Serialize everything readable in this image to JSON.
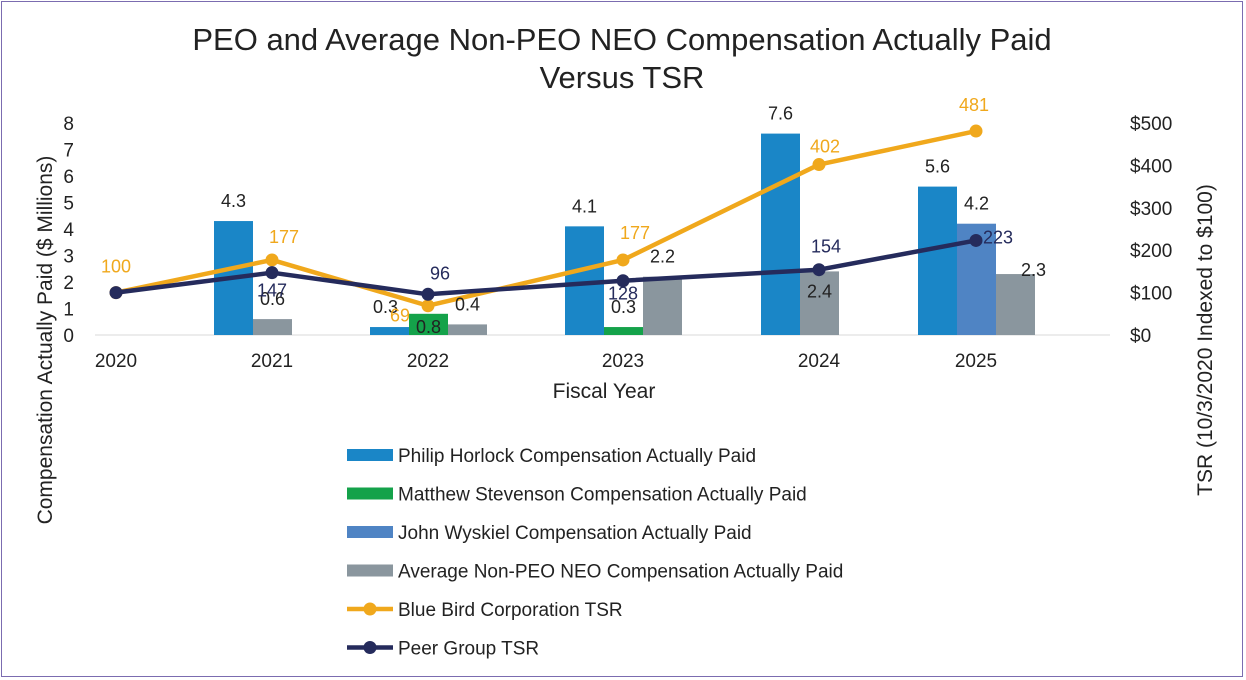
{
  "chart_data": {
    "type": "bar",
    "title_line1": "PEO and Average Non-PEO NEO Compensation Actually Paid",
    "title_line2": "Versus TSR",
    "xlabel": "Fiscal Year",
    "ylabel": "Compensation Actually Paid ($ Millions)",
    "y2label": "TSR (10/3/2020 Indexed to $100)",
    "categories": [
      "2020",
      "2021",
      "2022",
      "2023",
      "2024",
      "2025"
    ],
    "ylim": [
      0,
      8
    ],
    "yticks": [
      "0",
      "1",
      "2",
      "3",
      "4",
      "5",
      "6",
      "7",
      "8"
    ],
    "y2lim": [
      0,
      500
    ],
    "y2ticks": [
      "$0",
      "$100",
      "$200",
      "$300",
      "$400",
      "$500"
    ],
    "bar_series": [
      {
        "name": "Philip Horlock Compensation Actually Paid",
        "color": "#1a86c7",
        "values": [
          null,
          4.3,
          0.3,
          4.1,
          7.6,
          5.6
        ],
        "labels": [
          null,
          "4.3",
          "0.3",
          "4.1",
          "7.6",
          "5.6"
        ]
      },
      {
        "name": "Matthew Stevenson Compensation Actually Paid",
        "color": "#14a24a",
        "values": [
          null,
          null,
          0.8,
          0.3,
          null,
          null
        ],
        "labels": [
          null,
          null,
          "0.8",
          "0.3",
          null,
          null
        ]
      },
      {
        "name": "John Wyskiel Compensation Actually Paid",
        "color": "#4f84c4",
        "values": [
          null,
          null,
          null,
          null,
          null,
          4.2
        ],
        "labels": [
          null,
          null,
          null,
          null,
          null,
          "4.2"
        ]
      },
      {
        "name": "Average Non-PEO NEO Compensation Actually Paid",
        "color": "#8a969e",
        "values": [
          null,
          0.6,
          0.4,
          2.2,
          2.4,
          2.3
        ],
        "labels": [
          null,
          "0.6",
          "0.4",
          "2.2",
          "2.4",
          "2.3"
        ]
      }
    ],
    "line_series": [
      {
        "name": "Blue Bird Corporation TSR",
        "color": "#f0a81c",
        "values": [
          100,
          177,
          69,
          177,
          402,
          481
        ],
        "labels": [
          "100",
          "177",
          "69",
          "177",
          "402",
          "481"
        ]
      },
      {
        "name": "Peer Group TSR",
        "color": "#252b5c",
        "values": [
          100,
          147,
          96,
          128,
          154,
          223
        ],
        "labels": [
          "",
          "147",
          "96",
          "128",
          "154",
          "223"
        ]
      }
    ],
    "legend": [
      {
        "label": "Philip Horlock Compensation Actually Paid",
        "kind": "bar",
        "color": "#1a86c7"
      },
      {
        "label": "Matthew Stevenson Compensation Actually Paid",
        "kind": "bar",
        "color": "#14a24a"
      },
      {
        "label": "John Wyskiel Compensation Actually Paid",
        "kind": "bar",
        "color": "#4f84c4"
      },
      {
        "label": "Average Non-PEO NEO Compensation Actually Paid",
        "kind": "bar",
        "color": "#8a969e"
      },
      {
        "label": "Blue Bird Corporation TSR",
        "kind": "line",
        "color": "#f0a81c"
      },
      {
        "label": "Peer Group TSR",
        "kind": "line",
        "color": "#252b5c"
      }
    ],
    "legend_position": "bottom-center"
  }
}
